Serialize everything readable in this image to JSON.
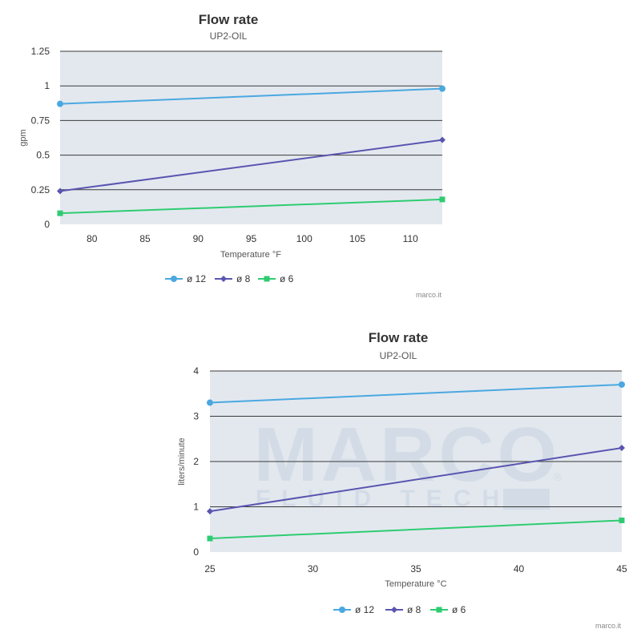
{
  "chart_data": [
    {
      "type": "line",
      "title": "Flow rate",
      "subtitle": "UP2-OIL",
      "xlabel": "Temperature °F",
      "ylabel": "gpm",
      "xlim": [
        77,
        113
      ],
      "ylim": [
        0,
        1.25
      ],
      "xticks": [
        80,
        85,
        90,
        95,
        100,
        105,
        110
      ],
      "yticks": [
        0,
        0.25,
        0.5,
        0.75,
        1,
        1.25
      ],
      "ytick_labels": [
        "0",
        "0.25",
        "0.5",
        "0.75",
        "1",
        "1.25"
      ],
      "x": [
        77,
        113
      ],
      "series": [
        {
          "name": "ø 12",
          "values": [
            0.87,
            0.98
          ],
          "color": "#4aa8e0",
          "marker": "circle"
        },
        {
          "name": "ø 8",
          "values": [
            0.24,
            0.61
          ],
          "color": "#5a55b0",
          "marker": "diamond"
        },
        {
          "name": "ø 6",
          "values": [
            0.08,
            0.18
          ],
          "color": "#2ecc71",
          "marker": "square"
        }
      ],
      "credit": "marco.it",
      "grid": true,
      "legend_position": "bottom"
    },
    {
      "type": "line",
      "title": "Flow rate",
      "subtitle": "UP2-OIL",
      "xlabel": "Temperature °C",
      "ylabel": "liters/minute",
      "xlim": [
        25,
        45
      ],
      "ylim": [
        0,
        4
      ],
      "xticks": [
        25,
        30,
        35,
        40,
        45
      ],
      "yticks": [
        0,
        1,
        2,
        3,
        4
      ],
      "ytick_labels": [
        "0",
        "1",
        "2",
        "3",
        "4"
      ],
      "x": [
        25,
        45
      ],
      "series": [
        {
          "name": "ø 12",
          "values": [
            3.3,
            3.7
          ],
          "color": "#4aa8e0",
          "marker": "circle"
        },
        {
          "name": "ø 8",
          "values": [
            0.9,
            2.3
          ],
          "color": "#5a55b0",
          "marker": "diamond"
        },
        {
          "name": "ø 6",
          "values": [
            0.3,
            0.7
          ],
          "color": "#2ecc71",
          "marker": "square"
        }
      ],
      "credit": "marco.it",
      "watermark": {
        "logo": "MARCO",
        "tagline": "FLUID TECH",
        "registered": "®"
      },
      "grid": true,
      "legend_position": "bottom"
    }
  ]
}
